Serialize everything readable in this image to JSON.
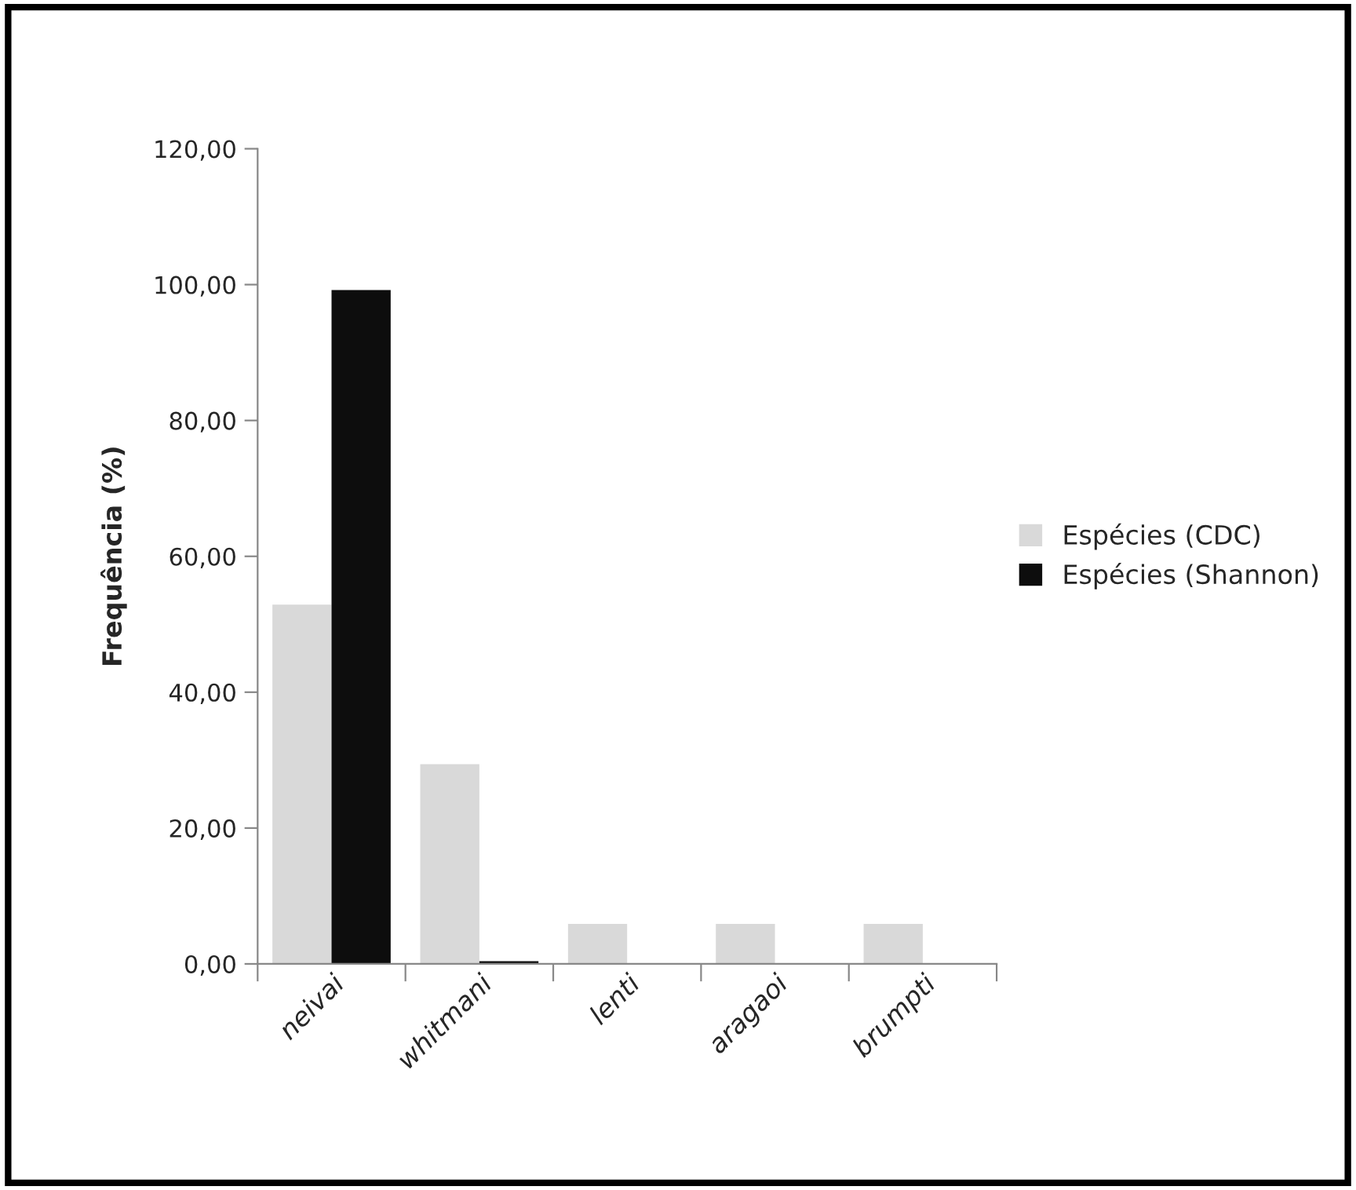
{
  "chart_data": {
    "type": "bar",
    "ylabel": "Frequência (%)",
    "categories": [
      "neivai",
      "whitmani",
      "lenti",
      "aragaoi",
      "brumpti"
    ],
    "series": [
      {
        "name": "Espécies (CDC)",
        "color": "#d9d9d9",
        "values": [
          52.9,
          29.4,
          5.9,
          5.9,
          5.9
        ]
      },
      {
        "name": "Espécies (Shannon)",
        "color": "#0d0d0d",
        "values": [
          99.2,
          0.4,
          null,
          null,
          null
        ]
      }
    ],
    "ylim": [
      0,
      120
    ],
    "yticks": [
      {
        "value": 0,
        "label": "0,00"
      },
      {
        "value": 20,
        "label": "20,00"
      },
      {
        "value": 40,
        "label": "40,00"
      },
      {
        "value": 60,
        "label": "60,00"
      },
      {
        "value": 80,
        "label": "80,00"
      },
      {
        "value": 100,
        "label": "100,00"
      },
      {
        "value": 120,
        "label": "120,00"
      }
    ],
    "grid": false,
    "legend": "right"
  }
}
